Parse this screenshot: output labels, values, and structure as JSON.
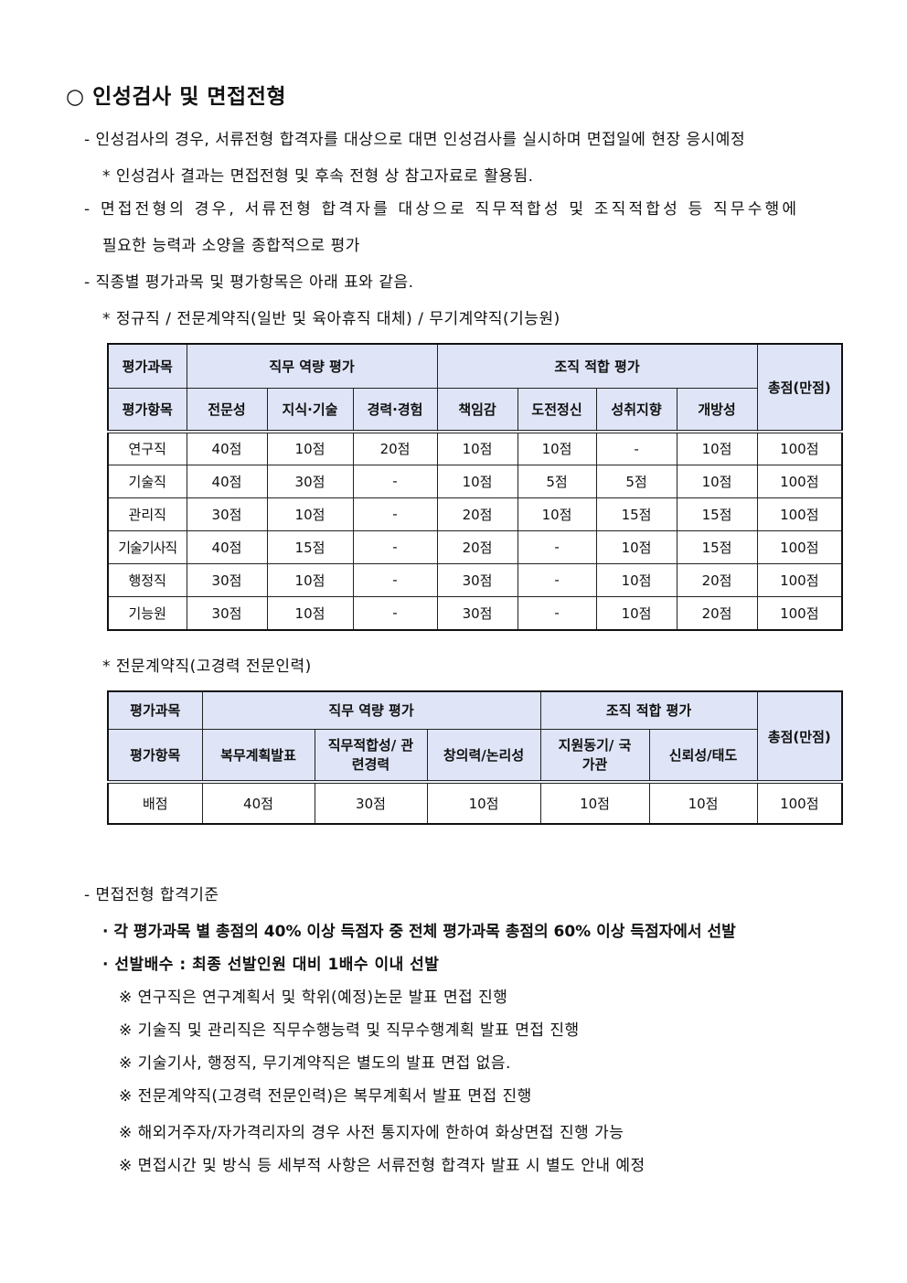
{
  "title": "○ 인성검사 및 면접전형",
  "lines": [
    "- 인성검사의 경우, 서류전형 합격자를 대상으로 대면 인성검사를 실시하며 면접일에 현장 응시예정",
    "* 인성검사 결과는 면접전형 및 후속 전형 상 참고자료로 활용됨.",
    "- 면접전형의 경우, 서류전형 합격자를 대상으로 직무적합성 및 조직적합성 등 직무수행에",
    "필요한 능력과 소양을 종합적으로 평가",
    "- 직종별 평가과목 및 평가항목은 아래 표와 같음.",
    "* 정규직 / 전문계약직(일반 및 육아휴직 대체) / 무기계약직(기능원)"
  ],
  "table1": {
    "subject_label": "평가과목",
    "group1": "직무 역량 평가",
    "group2": "조직 적합 평가",
    "total_label": "총점(만점)",
    "item_label": "평가항목",
    "items": [
      "전문성",
      "지식·기술",
      "경력·경험",
      "책임감",
      "도전정신",
      "성취지향",
      "개방성"
    ],
    "rows": [
      [
        "연구직",
        "40점",
        "10점",
        "20점",
        "10점",
        "10점",
        "-",
        "10점",
        "100점"
      ],
      [
        "기술직",
        "40점",
        "30점",
        "-",
        "10점",
        "5점",
        "5점",
        "10점",
        "100점"
      ],
      [
        "관리직",
        "30점",
        "10점",
        "-",
        "20점",
        "10점",
        "15점",
        "15점",
        "100점"
      ],
      [
        "기술기사직",
        "40점",
        "15점",
        "-",
        "20점",
        "-",
        "10점",
        "15점",
        "100점"
      ],
      [
        "행정직",
        "30점",
        "10점",
        "-",
        "30점",
        "-",
        "10점",
        "20점",
        "100점"
      ],
      [
        "기능원",
        "30점",
        "10점",
        "-",
        "30점",
        "-",
        "10점",
        "20점",
        "100점"
      ]
    ]
  },
  "table2_caption": "* 전문계약직(고경력 전문인력)",
  "table2": {
    "subject_label": "평가과목",
    "group1": "직무 역량 평가",
    "group2": "조직 적합 평가",
    "total_label": "총점(만점)",
    "item_label": "평가항목",
    "items": [
      "복무계획발표",
      "직무적합성/ 관련경력",
      "창의력/논리성",
      "지원동기/ 국가관",
      "신뢰성/태도"
    ],
    "row": [
      "배점",
      "40점",
      "30점",
      "10점",
      "10점",
      "10점",
      "100점"
    ]
  },
  "criteria": {
    "heading": "- 면접전형 합격기준",
    "bullets": [
      "· 각 평가과목 별 총점의 40% 이상 득점자 중 전체 평가과목 총점의 60% 이상 득점자에서 선발",
      "· 선발배수 : 최종 선발인원 대비 1배수 이내 선발"
    ],
    "notes": [
      "※ 연구직은 연구계획서 및 학위(예정)논문 발표 면접 진행",
      "※ 기술직 및 관리직은 직무수행능력 및 직무수행계획 발표 면접 진행",
      "※ 기술기사, 행정직, 무기계약직은 별도의 발표 면접 없음.",
      "※ 전문계약직(고경력 전문인력)은 복무계획서 발표 면접 진행",
      "※ 해외거주자/자가격리자의 경우 사전 통지자에 한하여 화상면접 진행 가능",
      "※ 면접시간 및 방식 등 세부적 사항은 서류전형 합격자 발표 시 별도 안내 예정"
    ]
  }
}
